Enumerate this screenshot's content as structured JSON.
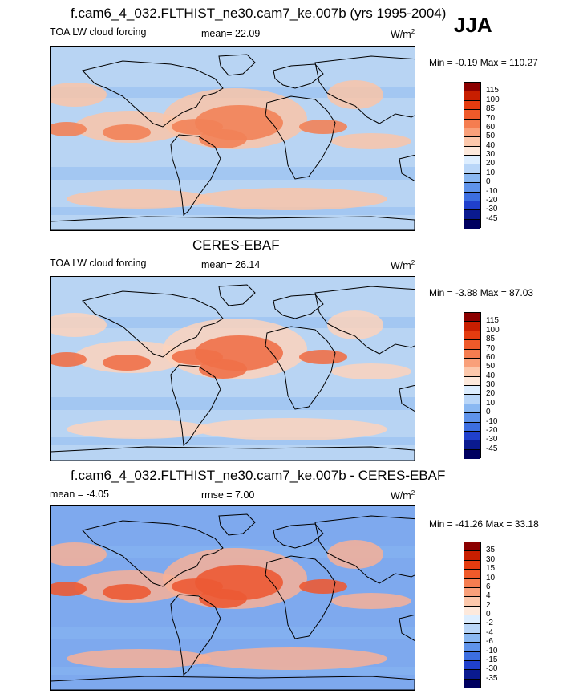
{
  "season": "JJA",
  "panels": [
    {
      "title": "f.cam6_4_032.FLTHIST_ne30.cam7_ke.007b (yrs 1995-2004)",
      "left_label": "TOA LW cloud forcing",
      "center_label": "mean=  22.09",
      "units": "W/m",
      "units_sup": "2",
      "minmax": "Min =  -0.19 Max = 110.27",
      "levels": [
        "115",
        "100",
        "85",
        "70",
        "60",
        "50",
        "40",
        "30",
        "20",
        "10",
        "0",
        "-10",
        "-20",
        "-30",
        "-45"
      ],
      "colors": [
        "#8b0000",
        "#c81e00",
        "#e43c10",
        "#ef5a2a",
        "#f57d50",
        "#f9a07a",
        "#fcc8ac",
        "#fde9dc",
        "#ddeeff",
        "#b9d6f8",
        "#8ab8f2",
        "#5f93ea",
        "#3c6ee0",
        "#2040cc",
        "#0a1a8f",
        "#000060"
      ],
      "fill": "#b8d4f3",
      "hot": "#f28258",
      "warm": "#f9c4a8"
    },
    {
      "title": "CERES-EBAF",
      "left_label": "TOA LW cloud forcing",
      "center_label": "mean=  26.14",
      "units": "W/m",
      "units_sup": "2",
      "minmax": "Min =  -3.88 Max = 87.03",
      "levels": [
        "115",
        "100",
        "85",
        "70",
        "60",
        "50",
        "40",
        "30",
        "20",
        "10",
        "0",
        "-10",
        "-20",
        "-30",
        "-45"
      ],
      "colors": [
        "#8b0000",
        "#c81e00",
        "#e43c10",
        "#ef5a2a",
        "#f57d50",
        "#f9a07a",
        "#fcc8ac",
        "#fde9dc",
        "#ddeeff",
        "#b9d6f8",
        "#8ab8f2",
        "#5f93ea",
        "#3c6ee0",
        "#2040cc",
        "#0a1a8f",
        "#000060"
      ],
      "fill": "#b8d4f3",
      "hot": "#f07048",
      "warm": "#fbd2bc"
    },
    {
      "title": "f.cam6_4_032.FLTHIST_ne30.cam7_ke.007b - CERES-EBAF",
      "left_label": "mean =  -4.05",
      "center_label": "rmse =   7.00",
      "units": "W/m",
      "units_sup": "2",
      "minmax": "Min = -41.26 Max = 33.18",
      "levels": [
        "35",
        "30",
        "15",
        "10",
        "6",
        "4",
        "2",
        "0",
        "-2",
        "-4",
        "-6",
        "-10",
        "-15",
        "-30",
        "-35"
      ],
      "colors": [
        "#8b0000",
        "#c81e00",
        "#e43c10",
        "#ef5a2a",
        "#f57d50",
        "#f9a07a",
        "#fcc8ac",
        "#fde9dc",
        "#ddeeff",
        "#b9d6f8",
        "#8ab8f2",
        "#5f93ea",
        "#3c6ee0",
        "#2040cc",
        "#0a1a8f",
        "#000060"
      ],
      "fill": "#7ea9ee",
      "hot": "#ec5a34",
      "warm": "#f7b096"
    }
  ]
}
